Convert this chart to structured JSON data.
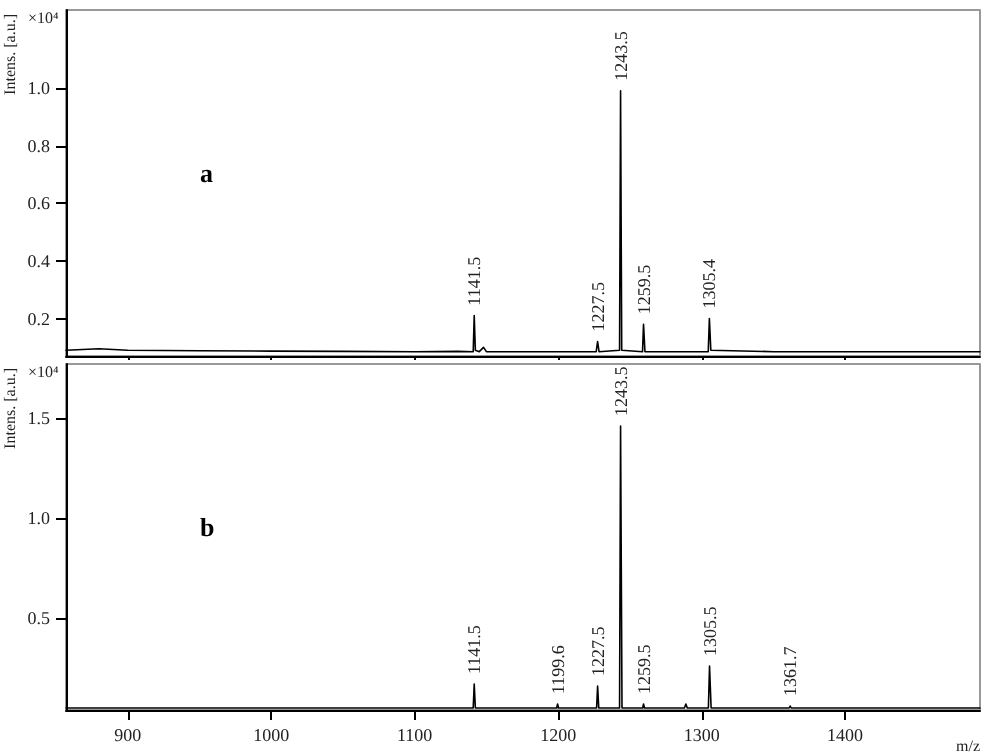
{
  "chart_data": [
    {
      "type": "line",
      "ylabel": "Intens. [a.u.]",
      "annotations": [
        "×10⁴",
        "a",
        {
          "text": "1141.5",
          "x": 1141.5,
          "y": 0.21
        },
        {
          "text": "1227.5",
          "x": 1227.5,
          "y": 0.12
        },
        {
          "text": "1243.5",
          "x": 1243.5,
          "y": 0.99
        },
        {
          "text": "1259.5",
          "x": 1259.5,
          "y": 0.18
        },
        {
          "text": "1305.4",
          "x": 1305.4,
          "y": 0.2
        }
      ],
      "x": [
        857,
        880,
        900,
        950,
        1000,
        1050,
        1100,
        1130,
        1140.8,
        1141.5,
        1142.3,
        1145,
        1148,
        1150,
        1200,
        1226.5,
        1227.5,
        1228.5,
        1242.8,
        1243.5,
        1244.3,
        1258.8,
        1259.5,
        1260.5,
        1304.6,
        1305.4,
        1306.4,
        1350,
        1400,
        1450,
        1494
      ],
      "series": [
        {
          "color": "#000000",
          "values": [
            0.09,
            0.095,
            0.09,
            0.088,
            0.087,
            0.086,
            0.085,
            0.086,
            0.085,
            0.21,
            0.09,
            0.085,
            0.1,
            0.085,
            0.085,
            0.085,
            0.12,
            0.085,
            0.09,
            0.99,
            0.09,
            0.085,
            0.18,
            0.085,
            0.085,
            0.2,
            0.09,
            0.085,
            0.085,
            0.085,
            0.085
          ]
        }
      ],
      "xlim": [
        857,
        1494
      ],
      "xticks": [
        900,
        1000,
        1100,
        1200,
        1300,
        1400
      ],
      "ylim": [
        0.07,
        1.27
      ],
      "yticks": [
        0.2,
        0.4,
        0.6,
        0.8,
        {
          "value": 1,
          "label": "1.0"
        }
      ],
      "tick_labels": "y",
      "marker": "none",
      "line_style": "solid",
      "grid": false
    },
    {
      "type": "line",
      "ylabel": "Intens. [a.u.]",
      "xlabel": "m/z",
      "annotations": [
        "×10⁴",
        "b",
        {
          "text": "1141.5",
          "x": 1141.5,
          "y": 0.17
        },
        {
          "text": "1199.6",
          "x": 1199.6,
          "y": 0.07
        },
        {
          "text": "1227.5",
          "x": 1227.5,
          "y": 0.16
        },
        {
          "text": "1243.5",
          "x": 1243.5,
          "y": 1.46
        },
        {
          "text": "1259.5",
          "x": 1259.5,
          "y": 0.07
        },
        {
          "text": "1305.5",
          "x": 1305.5,
          "y": 0.26
        },
        {
          "text": "1361.7",
          "x": 1361.7,
          "y": 0.06
        }
      ],
      "x": [
        857,
        900,
        1000,
        1100,
        1140.8,
        1141.5,
        1142.3,
        1199,
        1199.6,
        1200.3,
        1226.8,
        1227.5,
        1228.3,
        1242.8,
        1243.5,
        1244.5,
        1258.9,
        1259.5,
        1260.2,
        1288,
        1289,
        1290,
        1304.7,
        1305.5,
        1306.6,
        1361,
        1361.7,
        1362.4,
        1400,
        1494
      ],
      "series": [
        {
          "color": "#000000",
          "values": [
            0.05,
            0.05,
            0.05,
            0.05,
            0.05,
            0.17,
            0.05,
            0.05,
            0.07,
            0.05,
            0.05,
            0.16,
            0.05,
            0.05,
            1.46,
            0.05,
            0.05,
            0.07,
            0.05,
            0.05,
            0.07,
            0.05,
            0.05,
            0.26,
            0.05,
            0.05,
            0.06,
            0.05,
            0.05,
            0.05
          ]
        }
      ],
      "xlim": [
        857,
        1494
      ],
      "xticks": [
        900,
        1000,
        1100,
        1200,
        1300,
        1400
      ],
      "ylim": [
        0.04,
        1.77
      ],
      "yticks": [
        0.5,
        {
          "value": 1,
          "label": "1.0"
        },
        1.5
      ],
      "marker": "none",
      "line_style": "solid",
      "grid": false
    }
  ]
}
